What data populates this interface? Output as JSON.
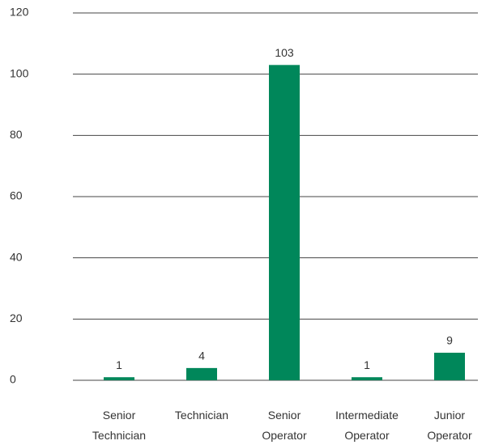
{
  "chart_data": {
    "type": "bar",
    "categories": [
      "Senior Technician",
      "Technician",
      "Senior Operator",
      "Intermediate Operator",
      "Junior Operator"
    ],
    "values": [
      1,
      4,
      103,
      1,
      9
    ],
    "color": "#00875a",
    "ylim": [
      0,
      120
    ],
    "yticks": [
      0,
      20,
      40,
      60,
      80,
      100,
      120
    ],
    "grid": true
  }
}
